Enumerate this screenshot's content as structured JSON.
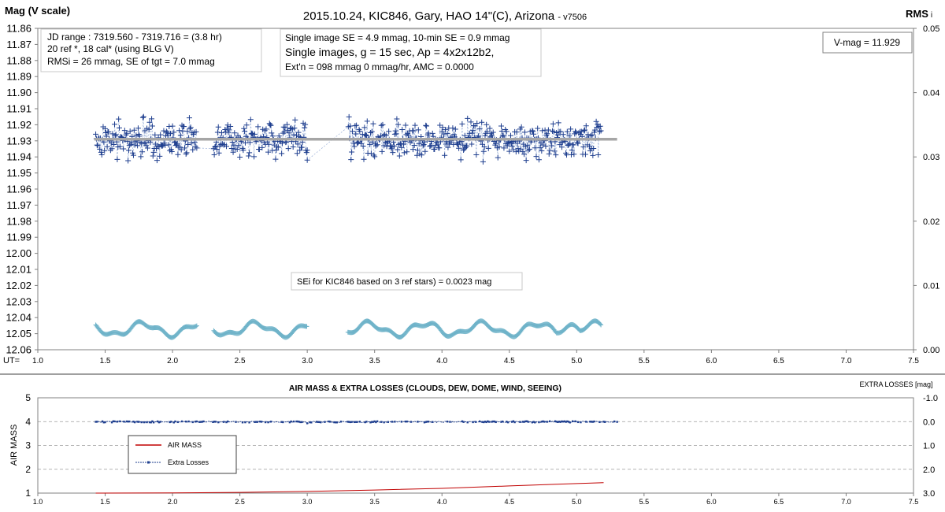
{
  "chart_data": [
    {
      "type": "scatter",
      "title": "2015.10.24,  KIC846, Gary, HAO  14\"(C), Arizona",
      "title_suffix": "- v7506",
      "ylabel": "Mag (V scale)",
      "y2label": "RMS",
      "y2label_suffix": "i",
      "xlabel": "UT=",
      "xlim": [
        1.0,
        7.5
      ],
      "ylim": [
        11.86,
        12.06
      ],
      "y_inverted": true,
      "y2lim": [
        0.0,
        0.05
      ],
      "x_ticks": [
        "1.0",
        "1.5",
        "2.0",
        "2.5",
        "3.0",
        "3.5",
        "4.0",
        "4.5",
        "5.0",
        "5.5",
        "6.0",
        "6.5",
        "7.0",
        "7.5"
      ],
      "y_ticks": [
        "11.86",
        "11.87",
        "11.88",
        "11.89",
        "11.90",
        "11.91",
        "11.92",
        "11.93",
        "11.94",
        "11.95",
        "11.96",
        "11.97",
        "11.98",
        "11.99",
        "12.00",
        "12.01",
        "12.02",
        "12.03",
        "12.04",
        "12.05",
        "12.06"
      ],
      "y2_ticks": [
        "0.05",
        "0.04",
        "0.03",
        "0.02",
        "0.01",
        "0.00"
      ],
      "info_box_1": [
        "JD range  : 7319.560  - 7319.716  = (3.8 hr)",
        "20 ref *, 18 cal* (using BLG V)",
        "RMSi = 26 mmag, SE of tgt = 7.0 mmag"
      ],
      "info_box_2": [
        "Single image SE = 4.9 mmag, 10-min SE = 0.9 mmag",
        "Single images, g = 15 sec, Ap = 4x2x12b2,",
        "Ext'n = 098 mmag 0 mmag/hr, AMC = 0.0000"
      ],
      "vmag_box": "V-mag = 11.929",
      "sei_note": "SEi for KIC846 based on 3 ref stars) = 0.0023 mag",
      "mean_line": {
        "y": 11.929,
        "x_range": [
          1.42,
          5.3
        ]
      },
      "series": [
        {
          "role": "target magnitude",
          "marker": "+",
          "color": "#1f3f8f",
          "x_range": [
            1.43,
            5.18
          ],
          "y_center": 11.929,
          "y_spread": 0.012
        },
        {
          "role": "rms",
          "marker": "+",
          "color": "#6fb3c9",
          "x_range": [
            1.43,
            5.18
          ],
          "y2_range": [
            0.0025,
            0.0055
          ]
        }
      ],
      "gaps_ut": [
        [
          2.18,
          2.3
        ],
        [
          3.0,
          3.3
        ]
      ]
    },
    {
      "type": "line",
      "title": "AIR MASS & EXTRA LOSSES (CLOUDS, DEW, DOME, WIND, SEEING)",
      "ylabel": "AIR MASS",
      "y2label": "EXTRA LOSSES [mag]",
      "xlim": [
        1.0,
        7.5
      ],
      "ylim": [
        1,
        5
      ],
      "y2lim": [
        -1.0,
        3.0
      ],
      "y2_inverted": true,
      "x_ticks": [
        "1.0",
        "1.5",
        "2.0",
        "2.5",
        "3.0",
        "3.5",
        "4.0",
        "4.5",
        "5.0",
        "5.5",
        "6.0",
        "6.5",
        "7.0",
        "7.5"
      ],
      "y_ticks": [
        "5",
        "4",
        "3",
        "2",
        "1"
      ],
      "y2_ticks": [
        "-1.0",
        "0.0",
        "1.0",
        "2.0",
        "3.0"
      ],
      "legend": {
        "placement": "center-left",
        "entries": [
          "AIR MASS",
          "Extra Losses"
        ]
      },
      "series": [
        {
          "name": "AIR MASS",
          "color": "#c00000",
          "x": [
            1.43,
            2.0,
            2.5,
            3.0,
            3.5,
            4.0,
            4.5,
            5.0,
            5.2
          ],
          "y": [
            1.0,
            1.01,
            1.03,
            1.07,
            1.13,
            1.2,
            1.3,
            1.4,
            1.44
          ]
        },
        {
          "name": "Extra Losses",
          "color": "#1f3f8f",
          "x_range": [
            1.43,
            5.3
          ],
          "y2_center": 0.0,
          "y2_spread": 0.05
        }
      ]
    }
  ]
}
